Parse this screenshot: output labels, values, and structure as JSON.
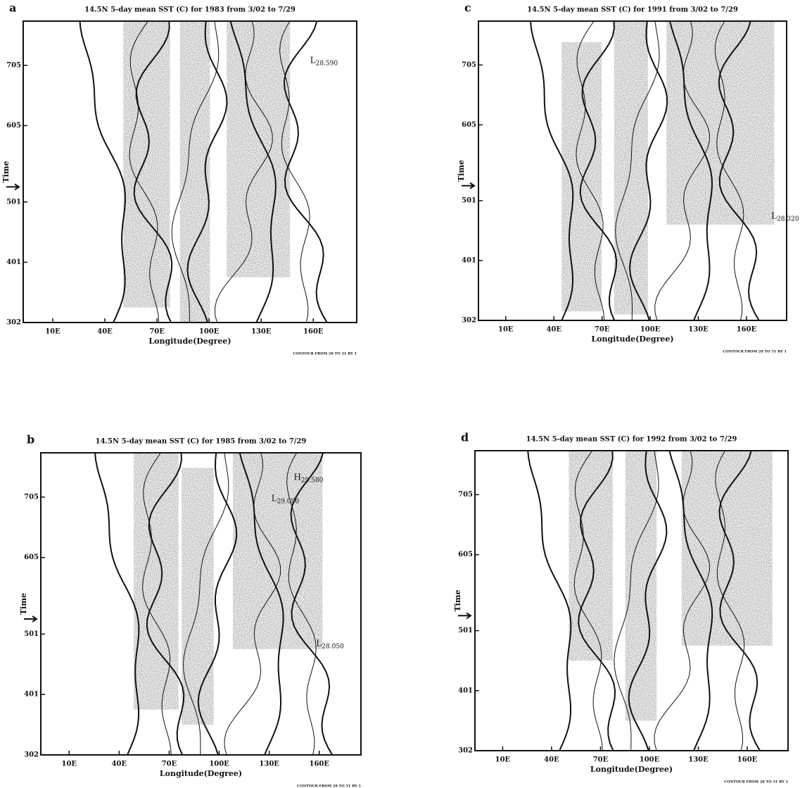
{
  "chart_data": [
    {
      "type": "contour",
      "panel_label": "a",
      "title": "14.5N 5-day mean SST (C) for 1983 from 3/02 to 7/29",
      "x_label": "Longitude(Degree)",
      "y_label": "Time",
      "footnote": "CONTOUR FROM 28 TO 31 BY 1",
      "xlim": [
        -7,
        185
      ],
      "xticks": [
        {
          "value": 10,
          "label": "10E"
        },
        {
          "value": 40,
          "label": "40E"
        },
        {
          "value": 70,
          "label": "70E"
        },
        {
          "value": 100,
          "label": "100E"
        },
        {
          "value": 130,
          "label": "130E"
        },
        {
          "value": 160,
          "label": "160E"
        }
      ],
      "ylim": [
        0,
        150
      ],
      "yticks": [
        {
          "value": 0,
          "label": "302"
        },
        {
          "value": 30,
          "label": "401"
        },
        {
          "value": 60,
          "label": "501"
        },
        {
          "value": 98,
          "label": "605"
        },
        {
          "value": 128,
          "label": "705"
        }
      ],
      "annotations": [
        {
          "letter": "L",
          "text": "28.590"
        }
      ]
    },
    {
      "type": "contour",
      "panel_label": "b",
      "title": "14.5N 5-day mean SST (C) for 1985 from 3/02 to 7/29",
      "x_label": "Longitude(Degree)",
      "y_label": "Time",
      "footnote": "CONTOUR FROM 28 TO 31 BY 1",
      "xlim": [
        -7,
        185
      ],
      "xticks": [
        {
          "value": 10,
          "label": "10E"
        },
        {
          "value": 40,
          "label": "40E"
        },
        {
          "value": 70,
          "label": "70E"
        },
        {
          "value": 100,
          "label": "100E"
        },
        {
          "value": 130,
          "label": "130E"
        },
        {
          "value": 160,
          "label": "160E"
        }
      ],
      "ylim": [
        0,
        150
      ],
      "yticks": [
        {
          "value": 0,
          "label": "302"
        },
        {
          "value": 30,
          "label": "401"
        },
        {
          "value": 60,
          "label": "501"
        },
        {
          "value": 98,
          "label": "605"
        },
        {
          "value": 128,
          "label": "705"
        }
      ],
      "annotations": [
        {
          "letter": "H",
          "text": "29.580"
        },
        {
          "letter": "L",
          "text": "29.090"
        },
        {
          "letter": "L",
          "text": "28.050"
        }
      ]
    },
    {
      "type": "contour",
      "panel_label": "c",
      "title": "14.5N 5-day mean SST (C) for 1991 from 3/02 to 7/29",
      "x_label": "Longitude(Degree)",
      "y_label": "Time",
      "footnote": "CONTOUR FROM 28 TO 31 BY 1",
      "xlim": [
        -7,
        185
      ],
      "xticks": [
        {
          "value": 10,
          "label": "10E"
        },
        {
          "value": 40,
          "label": "40E"
        },
        {
          "value": 70,
          "label": "70E"
        },
        {
          "value": 100,
          "label": "100E"
        },
        {
          "value": 130,
          "label": "130E"
        },
        {
          "value": 160,
          "label": "160E"
        }
      ],
      "ylim": [
        0,
        150
      ],
      "yticks": [
        {
          "value": 0,
          "label": "302"
        },
        {
          "value": 30,
          "label": "401"
        },
        {
          "value": 60,
          "label": "501"
        },
        {
          "value": 98,
          "label": "605"
        },
        {
          "value": 128,
          "label": "705"
        }
      ],
      "annotations": [
        {
          "letter": "L",
          "text": "28.320"
        }
      ]
    },
    {
      "type": "contour",
      "panel_label": "d",
      "title": "14.5N 5-day mean SST (C) for 1992 from 3/02 to 7/29",
      "x_label": "Longitude(Degree)",
      "y_label": "Time",
      "footnote": "CONTOUR FROM 28 TO 31 BY 1",
      "xlim": [
        -7,
        185
      ],
      "xticks": [
        {
          "value": 10,
          "label": "10E"
        },
        {
          "value": 40,
          "label": "40E"
        },
        {
          "value": 70,
          "label": "70E"
        },
        {
          "value": 100,
          "label": "100E"
        },
        {
          "value": 130,
          "label": "130E"
        },
        {
          "value": 160,
          "label": "160E"
        }
      ],
      "ylim": [
        0,
        150
      ],
      "yticks": [
        {
          "value": 0,
          "label": "302"
        },
        {
          "value": 30,
          "label": "401"
        },
        {
          "value": 60,
          "label": "501"
        },
        {
          "value": 98,
          "label": "605"
        },
        {
          "value": 128,
          "label": "705"
        }
      ],
      "annotations": []
    }
  ]
}
